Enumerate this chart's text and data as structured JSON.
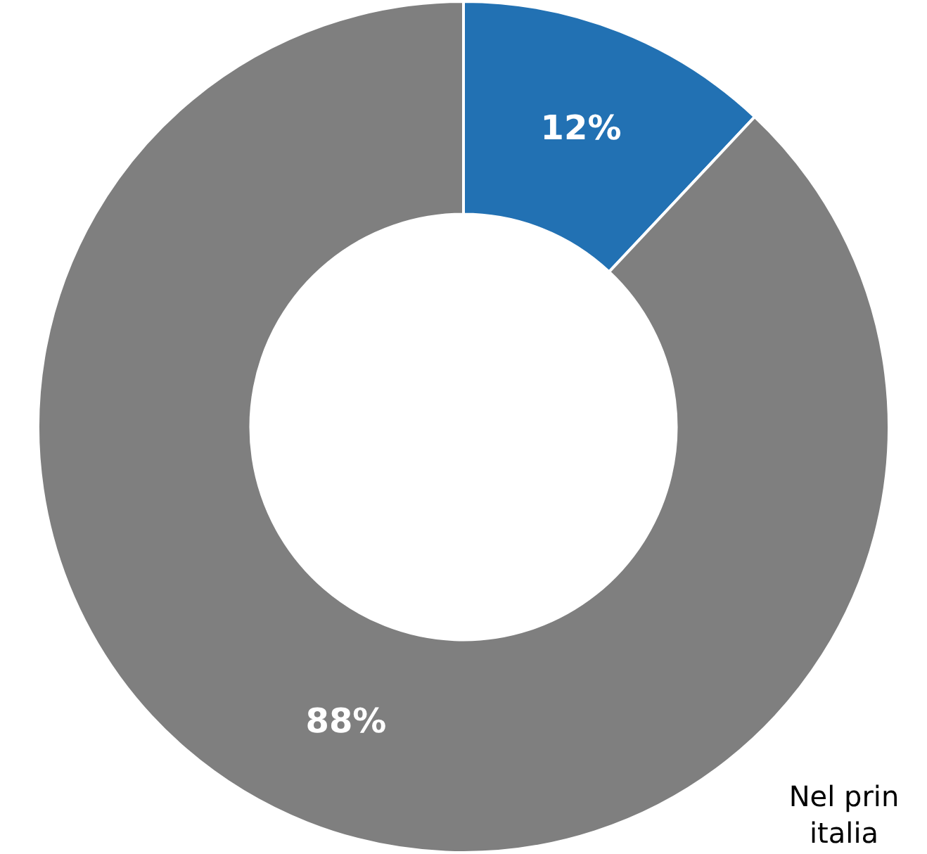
{
  "chart_data": {
    "type": "donut",
    "categories": [
      null,
      null
    ],
    "values": [
      12,
      88
    ],
    "colors": [
      "#2271b3",
      "#7f7f7f"
    ],
    "value_labels": [
      "12%",
      "88%"
    ],
    "legend": false,
    "annotations": [
      "Nel prin",
      "italia"
    ]
  }
}
